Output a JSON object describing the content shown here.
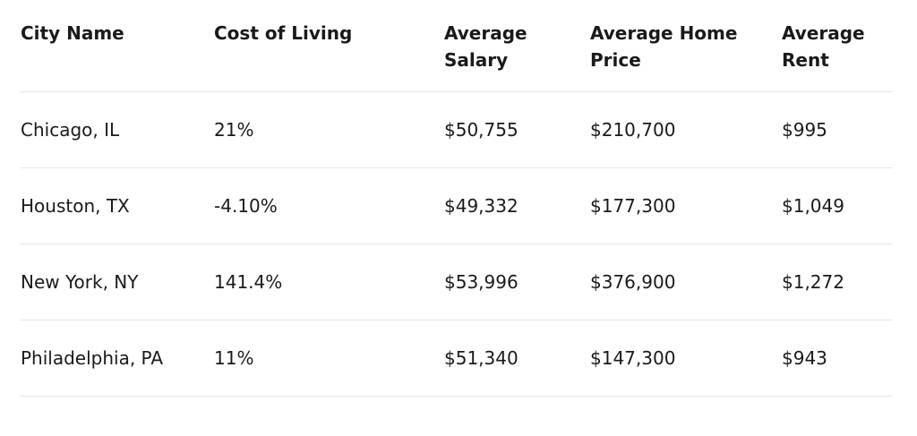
{
  "table": {
    "headers": [
      "City Name",
      "Cost of Living",
      "Average Salary",
      "Average Home Price",
      "Average Rent"
    ],
    "rows": [
      [
        "Chicago, IL",
        "21%",
        "$50,755",
        "$210,700",
        "$995"
      ],
      [
        "Houston, TX",
        "-4.10%",
        "$49,332",
        "$177,300",
        "$1,049"
      ],
      [
        "New York, NY",
        "141.4%",
        "$53,996",
        "$376,900",
        "$1,272"
      ],
      [
        "Philadelphia, PA",
        "11%",
        "$51,340",
        "$147,300",
        "$943"
      ]
    ]
  }
}
